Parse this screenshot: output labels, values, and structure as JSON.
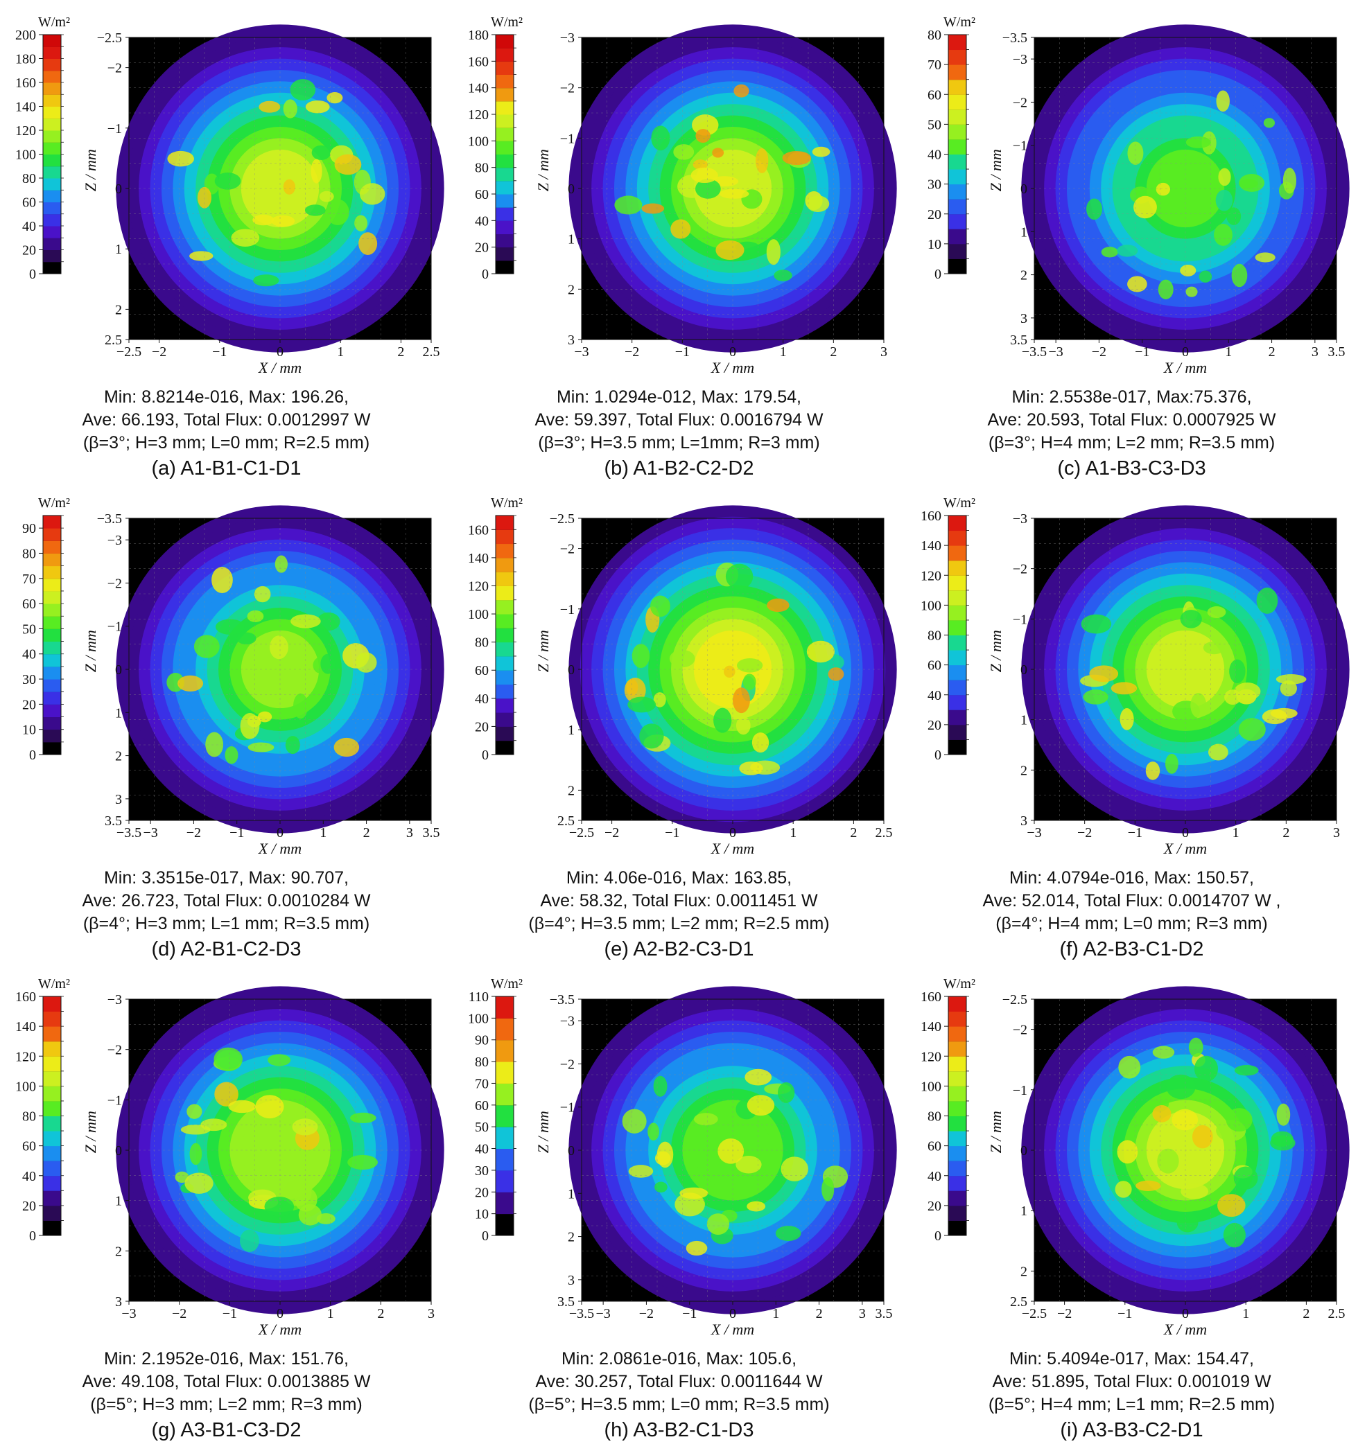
{
  "colors": {
    "scale": [
      "#000000",
      "#2a0a55",
      "#3a0a8c",
      "#4a12c8",
      "#3a30e6",
      "#2a5cf0",
      "#1a8ef0",
      "#10c4d8",
      "#18d890",
      "#22e040",
      "#58ec22",
      "#96f020",
      "#ccf020",
      "#ecec18",
      "#f0c810",
      "#f09a10",
      "#f06810",
      "#e63a10",
      "#dc1810",
      "#d00808"
    ],
    "background": "#000000"
  },
  "chart_data": [
    {
      "type": "heatmap",
      "id": "a",
      "unit_label": "W/m²",
      "xlabel": "X / mm",
      "ylabel": "Z / mm",
      "colorbar_ticks": [
        "0",
        "20",
        "40",
        "60",
        "80",
        "100",
        "120",
        "140",
        "160",
        "180",
        "200"
      ],
      "colorbar_max": 200,
      "colorbar_levels": 20,
      "x_ticks": [
        "−2.5",
        "−2",
        "−1",
        "0",
        "1",
        "2",
        "2.5"
      ],
      "z_ticks": [
        "−2.5",
        "−2",
        "−1",
        "0",
        "1",
        "2",
        "2.5"
      ],
      "range": [
        -2.5,
        2.5
      ],
      "stats": [
        "Min: 8.8214e-016, Max: 196.26,",
        "Ave: 66.193, Total Flux: 0.0012997 W",
        "(β=3°; H=3 mm; L=0 mm; R=2.5 mm)"
      ],
      "caption": "(a)  A1-B1-C1-D1",
      "min": 8.8214e-16,
      "max": 196.26,
      "ave": 66.193,
      "total_flux": 0.0012997,
      "beta": 3,
      "H": 3,
      "L": 0,
      "R": 2.5
    },
    {
      "type": "heatmap",
      "id": "b",
      "unit_label": "W/m²",
      "xlabel": "X / mm",
      "ylabel": "Z / mm",
      "colorbar_ticks": [
        "0",
        "20",
        "40",
        "60",
        "80",
        "100",
        "120",
        "140",
        "160",
        "180"
      ],
      "colorbar_max": 180,
      "colorbar_levels": 18,
      "x_ticks": [
        "−3",
        "−2",
        "−1",
        "0",
        "1",
        "2",
        "3"
      ],
      "z_ticks": [
        "−3",
        "−2",
        "−1",
        "0",
        "1",
        "2",
        "3"
      ],
      "range": [
        -3,
        3
      ],
      "stats": [
        "Min: 1.0294e-012, Max: 179.54,",
        "Ave: 59.397, Total Flux: 0.0016794 W",
        "(β=3°; H=3.5 mm; L=1mm; R=3 mm)"
      ],
      "caption": "(b) A1-B2-C2-D2",
      "min": 1.0294e-12,
      "max": 179.54,
      "ave": 59.397,
      "total_flux": 0.0016794,
      "beta": 3,
      "H": 3.5,
      "L": 1,
      "R": 3
    },
    {
      "type": "heatmap",
      "id": "c",
      "unit_label": "W/m²",
      "xlabel": "X / mm",
      "ylabel": "Z / mm",
      "colorbar_ticks": [
        "0",
        "10",
        "20",
        "30",
        "40",
        "50",
        "60",
        "70",
        "80"
      ],
      "colorbar_max": 80,
      "colorbar_levels": 16,
      "x_ticks": [
        "−3.5",
        "−3",
        "−2",
        "−1",
        "0",
        "1",
        "2",
        "3",
        "3.5"
      ],
      "z_ticks": [
        "−3.5",
        "−3",
        "−2",
        "−1",
        "0",
        "1",
        "2",
        "3",
        "3.5"
      ],
      "range": [
        -3.5,
        3.5
      ],
      "stats": [
        "Min: 2.5538e-017, Max:75.376,",
        "Ave: 20.593, Total Flux: 0.0007925 W",
        "(β=3°; H=4 mm; L=2 mm; R=3.5 mm)"
      ],
      "caption": "(c) A1-B3-C3-D3",
      "min": 2.5538e-17,
      "max": 75.376,
      "ave": 20.593,
      "total_flux": 0.0007925,
      "beta": 3,
      "H": 4,
      "L": 2,
      "R": 3.5
    },
    {
      "type": "heatmap",
      "id": "d",
      "unit_label": "W/m²",
      "xlabel": "X / mm",
      "ylabel": "Z / mm",
      "colorbar_ticks": [
        "0",
        "10",
        "20",
        "30",
        "40",
        "50",
        "60",
        "70",
        "80",
        "90"
      ],
      "colorbar_max": 95,
      "colorbar_levels": 19,
      "x_ticks": [
        "−3.5",
        "−3",
        "−2",
        "−1",
        "0",
        "1",
        "2",
        "3",
        "3.5"
      ],
      "z_ticks": [
        "−3.5",
        "−3",
        "−2",
        "−1",
        "0",
        "1",
        "2",
        "3",
        "3.5"
      ],
      "range": [
        -3.5,
        3.5
      ],
      "stats": [
        "Min: 3.3515e-017, Max: 90.707,",
        "Ave: 26.723, Total Flux: 0.0010284 W",
        "(β=4°; H=3 mm; L=1 mm; R=3.5 mm)"
      ],
      "caption": "(d) A2-B1-C2-D3",
      "min": 3.3515e-17,
      "max": 90.707,
      "ave": 26.723,
      "total_flux": 0.0010284,
      "beta": 4,
      "H": 3,
      "L": 1,
      "R": 3.5
    },
    {
      "type": "heatmap",
      "id": "e",
      "unit_label": "W/m²",
      "xlabel": "X / mm",
      "ylabel": "Z / mm",
      "colorbar_ticks": [
        "0",
        "20",
        "40",
        "60",
        "80",
        "100",
        "120",
        "140",
        "160"
      ],
      "colorbar_max": 170,
      "colorbar_levels": 17,
      "x_ticks": [
        "−2.5",
        "−2",
        "−1",
        "0",
        "1",
        "2",
        "2.5"
      ],
      "z_ticks": [
        "−2.5",
        "−2",
        "−1",
        "0",
        "1",
        "2",
        "2.5"
      ],
      "range": [
        -2.5,
        2.5
      ],
      "stats": [
        "Min: 4.06e-016, Max: 163.85,",
        "Ave: 58.32, Total Flux: 0.0011451 W",
        "(β=4°; H=3.5 mm; L=2 mm; R=2.5 mm)"
      ],
      "caption": "(e) A2-B2-C3-D1",
      "min": 4.06e-16,
      "max": 163.85,
      "ave": 58.32,
      "total_flux": 0.0011451,
      "beta": 4,
      "H": 3.5,
      "L": 2,
      "R": 2.5
    },
    {
      "type": "heatmap",
      "id": "f",
      "unit_label": "W/m²",
      "xlabel": "X / mm",
      "ylabel": "Z / mm",
      "colorbar_ticks": [
        "0",
        "20",
        "40",
        "60",
        "80",
        "100",
        "120",
        "140",
        "160"
      ],
      "colorbar_max": 160,
      "colorbar_levels": 16,
      "x_ticks": [
        "−3",
        "−2",
        "−1",
        "0",
        "1",
        "2",
        "3"
      ],
      "z_ticks": [
        "−3",
        "−2",
        "−1",
        "0",
        "1",
        "2",
        "3"
      ],
      "range": [
        -3,
        3
      ],
      "stats": [
        "Min: 4.0794e-016, Max: 150.57,",
        "Ave: 52.014, Total Flux: 0.0014707 W    ,",
        "(β=4°; H=4 mm; L=0 mm; R=3 mm)"
      ],
      "caption": "(f) A2-B3-C1-D2",
      "min": 4.0794e-16,
      "max": 150.57,
      "ave": 52.014,
      "total_flux": 0.0014707,
      "beta": 4,
      "H": 4,
      "L": 0,
      "R": 3
    },
    {
      "type": "heatmap",
      "id": "g",
      "unit_label": "W/m²",
      "xlabel": "X / mm",
      "ylabel": "Z / mm",
      "colorbar_ticks": [
        "0",
        "20",
        "40",
        "60",
        "80",
        "100",
        "120",
        "140",
        "160"
      ],
      "colorbar_max": 160,
      "colorbar_levels": 16,
      "x_ticks": [
        "−3",
        "−2",
        "−1",
        "0",
        "1",
        "2",
        "3"
      ],
      "z_ticks": [
        "−3",
        "−2",
        "−1",
        "0",
        "1",
        "2",
        "3"
      ],
      "range": [
        -3,
        3
      ],
      "stats": [
        "Min: 2.1952e-016, Max: 151.76,",
        "Ave: 49.108, Total Flux: 0.0013885 W",
        "(β=5°; H=3 mm; L=2 mm; R=3 mm)"
      ],
      "caption": "(g) A3-B1-C3-D2",
      "min": 2.1952e-16,
      "max": 151.76,
      "ave": 49.108,
      "total_flux": 0.0013885,
      "beta": 5,
      "H": 3,
      "L": 2,
      "R": 3
    },
    {
      "type": "heatmap",
      "id": "h",
      "unit_label": "W/m²",
      "xlabel": "X / mm",
      "ylabel": "Z / mm",
      "colorbar_ticks": [
        "0",
        "10",
        "20",
        "30",
        "40",
        "50",
        "60",
        "70",
        "80",
        "90",
        "100",
        "110"
      ],
      "colorbar_max": 110,
      "colorbar_levels": 11,
      "x_ticks": [
        "−3.5",
        "−3",
        "−2",
        "−1",
        "0",
        "1",
        "2",
        "3",
        "3.5"
      ],
      "z_ticks": [
        "−3.5",
        "−3",
        "−2",
        "−1",
        "0",
        "1",
        "2",
        "3",
        "3.5"
      ],
      "range": [
        -3.5,
        3.5
      ],
      "stats": [
        "Min: 2.0861e-016, Max: 105.6,",
        "Ave: 30.257, Total Flux: 0.0011644 W",
        "(β=5°; H=3.5 mm; L=0 mm; R=3.5 mm)"
      ],
      "caption": "(h) A3-B2-C1-D3",
      "min": 2.0861e-16,
      "max": 105.6,
      "ave": 30.257,
      "total_flux": 0.0011644,
      "beta": 5,
      "H": 3.5,
      "L": 0,
      "R": 3.5
    },
    {
      "type": "heatmap",
      "id": "i",
      "unit_label": "W/m²",
      "xlabel": "X / mm",
      "ylabel": "Z / mm",
      "colorbar_ticks": [
        "0",
        "20",
        "40",
        "60",
        "80",
        "100",
        "120",
        "140",
        "160"
      ],
      "colorbar_max": 160,
      "colorbar_levels": 16,
      "x_ticks": [
        "−2.5",
        "−2",
        "−1",
        "0",
        "1",
        "2",
        "2.5"
      ],
      "z_ticks": [
        "−2.5",
        "−2",
        "−1",
        "0",
        "1",
        "2",
        "2.5"
      ],
      "range": [
        -2.5,
        2.5
      ],
      "stats": [
        "Min: 5.4094e-017, Max: 154.47,",
        "Ave: 51.895, Total Flux: 0.001019 W",
        "(β=5°; H=4 mm; L=1 mm; R=2.5 mm)"
      ],
      "caption": "(i) A3-B3-C2-D1",
      "min": 5.4094e-17,
      "max": 154.47,
      "ave": 51.895,
      "total_flux": 0.001019,
      "beta": 5,
      "H": 4,
      "L": 1,
      "R": 2.5
    }
  ]
}
